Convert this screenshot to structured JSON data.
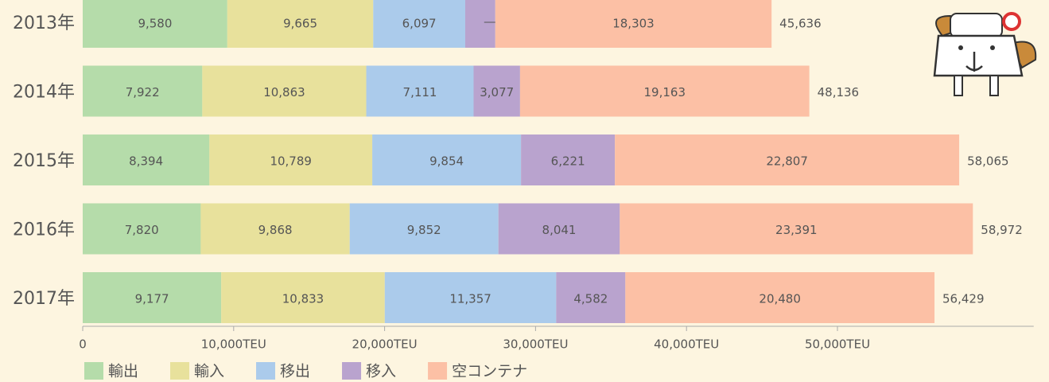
{
  "chart_data": {
    "type": "stacked_barh",
    "categories": [
      "2013年",
      "2014年",
      "2015年",
      "2016年",
      "2017年"
    ],
    "series": [
      {
        "name": "輸出",
        "color": "#b5dcaa",
        "values": [
          9580,
          7922,
          8394,
          7820,
          9177
        ],
        "value_labels": [
          "9,580",
          "7,922",
          "8,394",
          "7,820",
          "9,177"
        ]
      },
      {
        "name": "輸入",
        "color": "#e8e19c",
        "values": [
          9665,
          10863,
          10789,
          9868,
          10833
        ],
        "value_labels": [
          "9,665",
          "10,863",
          "10,789",
          "9,868",
          "10,833"
        ]
      },
      {
        "name": "移出",
        "color": "#abcbeb",
        "values": [
          6097,
          7111,
          9854,
          9852,
          11357
        ],
        "value_labels": [
          "6,097",
          "7,111",
          "9,854",
          "9,852",
          "11,357"
        ]
      },
      {
        "name": "移入",
        "color": "#b9a3ce",
        "values": [
          1991,
          3077,
          6221,
          8041,
          4582
        ],
        "value_labels": [
          "1,991",
          "3,077",
          "6,221",
          "8,041",
          "4,582"
        ]
      },
      {
        "name": "空コンテナ",
        "color": "#fcc0a5",
        "values": [
          18303,
          19163,
          22807,
          23391,
          20480
        ],
        "value_labels": [
          "18,303",
          "19,163",
          "22,807",
          "23,391",
          "20,480"
        ]
      }
    ],
    "totals": [
      45636,
      48136,
      58065,
      58972,
      56429
    ],
    "total_labels": [
      "45,636",
      "48,136",
      "58,065",
      "58,972",
      "56,429"
    ],
    "xlim": [
      0,
      63000
    ],
    "xticks": [
      0,
      {
        "value": 10000,
        "label": "10,000TEU"
      },
      {
        "value": 20000,
        "label": "20,000TEU"
      },
      {
        "value": 30000,
        "label": "30,000TEU"
      },
      {
        "value": 40000,
        "label": "40,000TEU"
      },
      {
        "value": 50000,
        "label": "50,000TEU"
      }
    ],
    "legend": "bottom-left"
  }
}
